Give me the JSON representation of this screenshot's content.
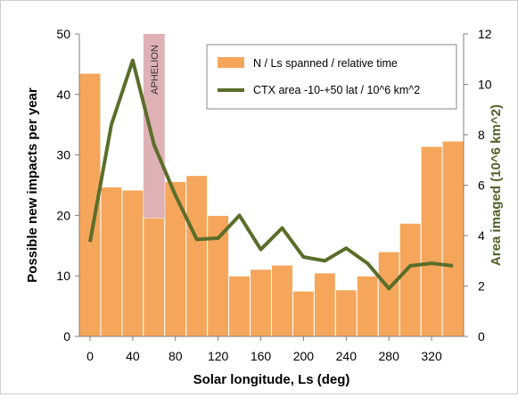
{
  "chart_data": {
    "type": "bar",
    "xlabel": "Solar longitude, Ls (deg)",
    "ylabel": "Possible new impacts per year",
    "y2label": "Area imaged (10^6 km^2)",
    "xlim": [
      -10,
      350
    ],
    "ylim": [
      0,
      50
    ],
    "y2lim": [
      0,
      12
    ],
    "x_ticks": [
      "0",
      "40",
      "80",
      "120",
      "160",
      "200",
      "240",
      "280",
      "320"
    ],
    "y_ticks": [
      "0",
      "10",
      "20",
      "30",
      "40",
      "50"
    ],
    "y2_ticks": [
      "0",
      "2",
      "4",
      "6",
      "8",
      "10",
      "12"
    ],
    "grid": false,
    "legend_position": "top-right",
    "colors": {
      "bars": "#f5a65b",
      "line": "#5a6e2a",
      "aphelion": "#d9a3a8",
      "right_axis": "#4f6228"
    },
    "annotation": {
      "label": "APHELION",
      "x": 60,
      "width": 20
    },
    "series": [
      {
        "name": "N / Ls spanned / relative time",
        "kind": "bar",
        "x": [
          0,
          20,
          40,
          60,
          80,
          100,
          120,
          140,
          160,
          180,
          200,
          220,
          240,
          260,
          280,
          300,
          320,
          340
        ],
        "values": [
          43.5,
          24.7,
          24.2,
          19.6,
          25.6,
          26.6,
          20.0,
          10.0,
          11.1,
          11.8,
          7.5,
          10.5,
          7.7,
          10.0,
          14.0,
          18.7,
          31.4,
          32.3
        ]
      },
      {
        "name": "CTX area -10-+50 lat / 10^6 km^2",
        "kind": "line",
        "x": [
          0,
          20,
          40,
          60,
          80,
          100,
          120,
          140,
          160,
          180,
          200,
          220,
          240,
          260,
          280,
          300,
          320,
          340
        ],
        "values": [
          3.75,
          8.4,
          10.95,
          7.6,
          5.6,
          3.85,
          3.9,
          4.8,
          3.45,
          4.3,
          3.15,
          3.0,
          3.5,
          2.9,
          1.9,
          2.8,
          2.9,
          2.8
        ]
      }
    ]
  }
}
